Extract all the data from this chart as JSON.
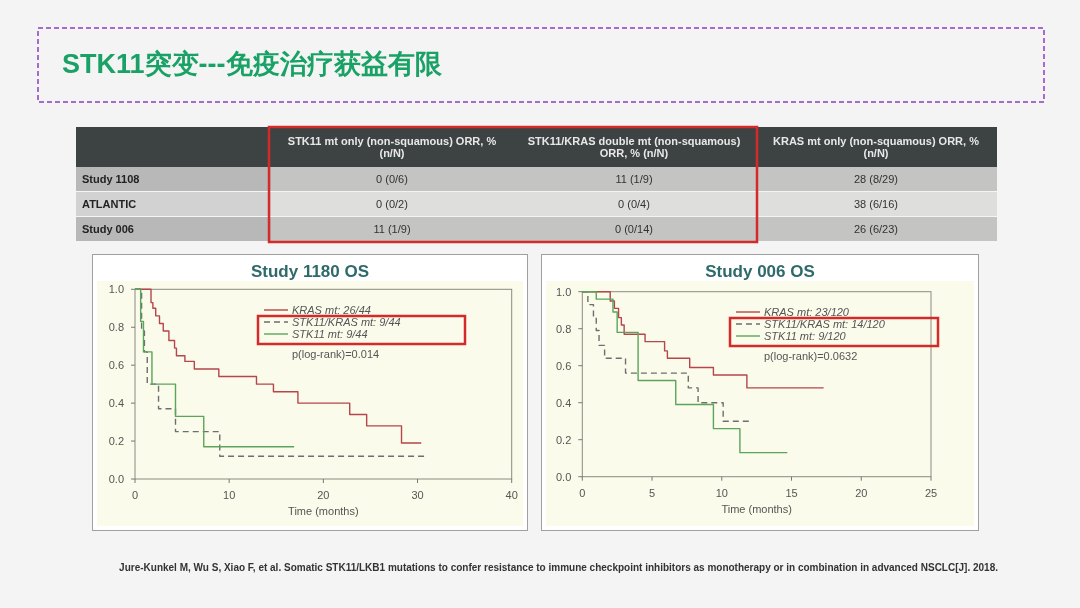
{
  "chart_data": [
    {
      "type": "other",
      "title": "STK11突变---免疫治疗获益有限",
      "categories": [
        "STK11 mt only (non-squamous) ORR, % (n/N)",
        "STK11/KRAS double mt (non-squamous) ORR, % (n/N)",
        "KRAS mt only (non-squamous) ORR, % (n/N)"
      ],
      "y_categories": [
        "Study 1108",
        "ATLANTIC",
        "Study 006"
      ],
      "cell_labels": [
        [
          "0 (0/6)",
          "11 (1/9)",
          "28 (8/29)"
        ],
        [
          "0 (0/2)",
          "0 (0/4)",
          "38 (6/16)"
        ],
        [
          "11 (1/9)",
          "0 (0/14)",
          "26 (6/23)"
        ]
      ],
      "annotations": [
        "Jure-Kunkel M, Wu S, Xiao F, et al. Somatic STK11/LKB1 mutations to confer resistance to immune checkpoint inhibitors as monotherapy or in combination in advanced NSCLC[J]. 2018."
      ]
    },
    {
      "type": "step",
      "title": "Study 1180  OS",
      "xlabel": "Time (months)",
      "xlim": [
        0,
        40
      ],
      "xticks": [
        0,
        10,
        20,
        30,
        40
      ],
      "ylim": [
        0,
        1
      ],
      "yticks": [
        {
          "value": 0,
          "label": "0.0"
        },
        {
          "value": 0.2,
          "label": "0.2"
        },
        {
          "value": 0.4,
          "label": "0.4"
        },
        {
          "value": 0.6,
          "label": "0.6"
        },
        {
          "value": 0.8,
          "label": "0.8"
        },
        {
          "value": 1,
          "label": "1.0"
        }
      ],
      "legend": "top right",
      "grid": false,
      "series": [
        {
          "name": "KRAS mt: 26/44",
          "color": "#b5464b",
          "line_style": "solid",
          "x": [
            0,
            1.7,
            1.9,
            2.2,
            2.6,
            3.0,
            3.6,
            4.2,
            4.4,
            5.3,
            6.3,
            8.9,
            12.9,
            14.7,
            17.3,
            22.8,
            24.6,
            28.3,
            30.4
          ],
          "values": [
            1.0,
            0.93,
            0.9,
            0.86,
            0.82,
            0.78,
            0.73,
            0.69,
            0.65,
            0.62,
            0.58,
            0.54,
            0.5,
            0.46,
            0.4,
            0.34,
            0.28,
            0.19,
            0.19
          ]
        },
        {
          "name": "STK11/KRAS mt: 9/44",
          "color": "#6e6e6e",
          "line_style": "dashed",
          "x": [
            0,
            0.7,
            1.0,
            1.3,
            2.5,
            4.3,
            9.0,
            31.0
          ],
          "values": [
            1.0,
            0.78,
            0.67,
            0.5,
            0.37,
            0.25,
            0.12,
            0.12
          ]
        },
        {
          "name": "STK11 mt: 9/44",
          "color": "#5aa55a",
          "line_style": "solid",
          "x": [
            0,
            0.6,
            0.9,
            1.8,
            4.3,
            7.3,
            16.9
          ],
          "values": [
            1.0,
            0.83,
            0.67,
            0.5,
            0.33,
            0.17,
            0.17
          ]
        }
      ],
      "annotations": [
        "p(log-rank)=0.014"
      ]
    },
    {
      "type": "step",
      "title": "Study 006  OS",
      "xlabel": "Time (months)",
      "xlim": [
        0,
        25
      ],
      "xticks": [
        0,
        5,
        10,
        15,
        20,
        25
      ],
      "ylim": [
        0,
        1
      ],
      "yticks": [
        {
          "value": 0,
          "label": "0.0"
        },
        {
          "value": 0.2,
          "label": "0.2"
        },
        {
          "value": 0.4,
          "label": "0.4"
        },
        {
          "value": 0.6,
          "label": "0.6"
        },
        {
          "value": 0.8,
          "label": "0.8"
        },
        {
          "value": 1,
          "label": "1.0"
        }
      ],
      "legend": "top right",
      "grid": false,
      "series": [
        {
          "name": "KRAS mt: 23/120",
          "color": "#b5464b",
          "line_style": "solid",
          "x": [
            0,
            2.0,
            2.3,
            2.6,
            2.8,
            3.0,
            4.5,
            5.9,
            6.1,
            7.7,
            9.4,
            11.8,
            17.3
          ],
          "values": [
            1.0,
            0.95,
            0.91,
            0.86,
            0.82,
            0.77,
            0.73,
            0.68,
            0.64,
            0.59,
            0.55,
            0.48,
            0.48
          ]
        },
        {
          "name": "STK11/KRAS mt: 14/120",
          "color": "#6e6e6e",
          "line_style": "dashed",
          "x": [
            0,
            0.4,
            0.8,
            1.0,
            1.2,
            1.6,
            3.1,
            7.6,
            8.3,
            10.1,
            12.0
          ],
          "values": [
            1.0,
            0.93,
            0.86,
            0.79,
            0.71,
            0.64,
            0.56,
            0.48,
            0.4,
            0.3,
            0.3
          ]
        },
        {
          "name": "STK11 mt: 9/120",
          "color": "#5aa55a",
          "line_style": "solid",
          "x": [
            0,
            1.0,
            2.2,
            2.5,
            4.0,
            6.7,
            9.4,
            11.3,
            14.7
          ],
          "values": [
            1.0,
            0.96,
            0.89,
            0.78,
            0.52,
            0.39,
            0.26,
            0.13,
            0.13
          ]
        }
      ],
      "annotations": [
        "p(log-rank)=0.0632"
      ]
    }
  ]
}
